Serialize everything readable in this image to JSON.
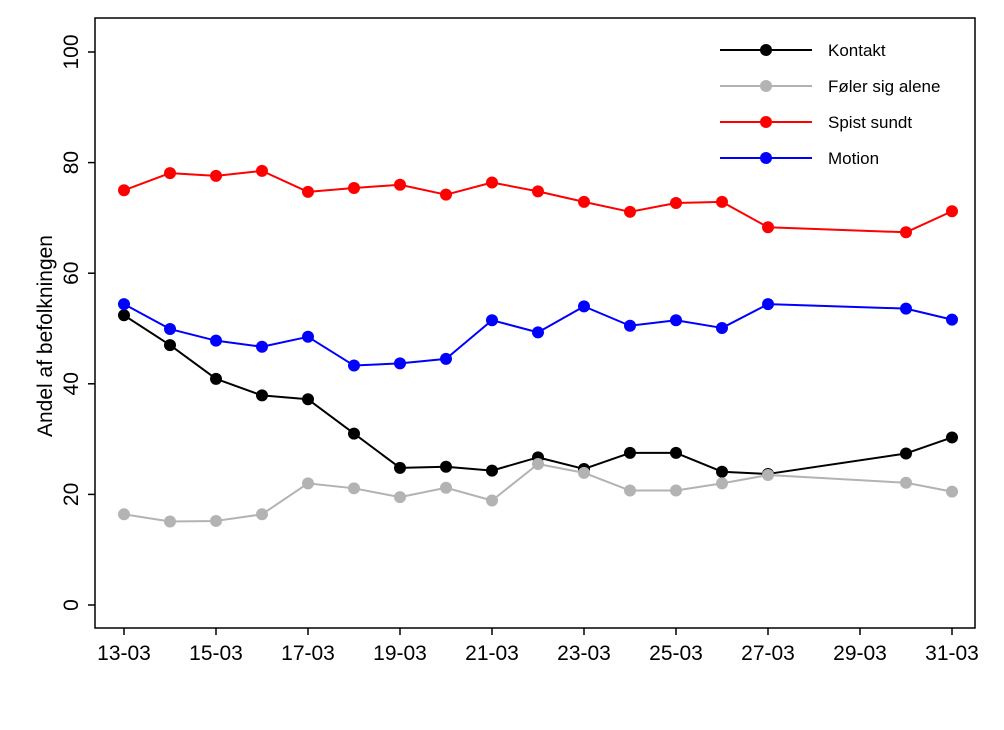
{
  "chart_data": {
    "type": "line",
    "title": "",
    "xlabel": "",
    "ylabel": "Andel af befolkningen",
    "ylim": [
      0,
      100
    ],
    "yticks": [
      0,
      20,
      40,
      60,
      80,
      100
    ],
    "xlim": [
      "13-03",
      "31-03"
    ],
    "x": [
      "13-03",
      "14-03",
      "15-03",
      "16-03",
      "17-03",
      "18-03",
      "19-03",
      "20-03",
      "21-03",
      "22-03",
      "23-03",
      "24-03",
      "25-03",
      "26-03",
      "27-03",
      "30-03",
      "31-03"
    ],
    "xtick_labels": [
      "13-03",
      "15-03",
      "17-03",
      "19-03",
      "21-03",
      "23-03",
      "25-03",
      "27-03",
      "29-03",
      "31-03"
    ],
    "grid": false,
    "legend_position": "top-right",
    "series": [
      {
        "name": "Kontakt",
        "color": "#000000",
        "values": [
          52.4,
          47.0,
          40.9,
          37.9,
          37.2,
          31.0,
          24.8,
          25.0,
          24.3,
          26.7,
          24.6,
          27.5,
          27.5,
          24.1,
          23.7,
          27.4,
          30.3
        ]
      },
      {
        "name": "Føler sig alene",
        "color": "#b3b3b3",
        "values": [
          16.4,
          15.1,
          15.2,
          16.4,
          22.0,
          21.1,
          19.5,
          21.2,
          18.9,
          25.5,
          23.9,
          20.7,
          20.7,
          22.0,
          23.5,
          22.1,
          20.5
        ]
      },
      {
        "name": "Spist sundt",
        "color": "#ff0000",
        "values": [
          75.0,
          78.1,
          77.6,
          78.5,
          74.7,
          75.4,
          76.0,
          74.2,
          76.4,
          74.8,
          72.9,
          71.1,
          72.7,
          72.9,
          68.3,
          67.4,
          71.2
        ]
      },
      {
        "name": "Motion",
        "color": "#0000ff",
        "values": [
          54.4,
          49.9,
          47.8,
          46.7,
          48.5,
          43.3,
          43.7,
          44.5,
          51.5,
          49.3,
          54.0,
          50.5,
          51.5,
          50.1,
          54.4,
          53.6,
          51.6
        ]
      }
    ]
  }
}
